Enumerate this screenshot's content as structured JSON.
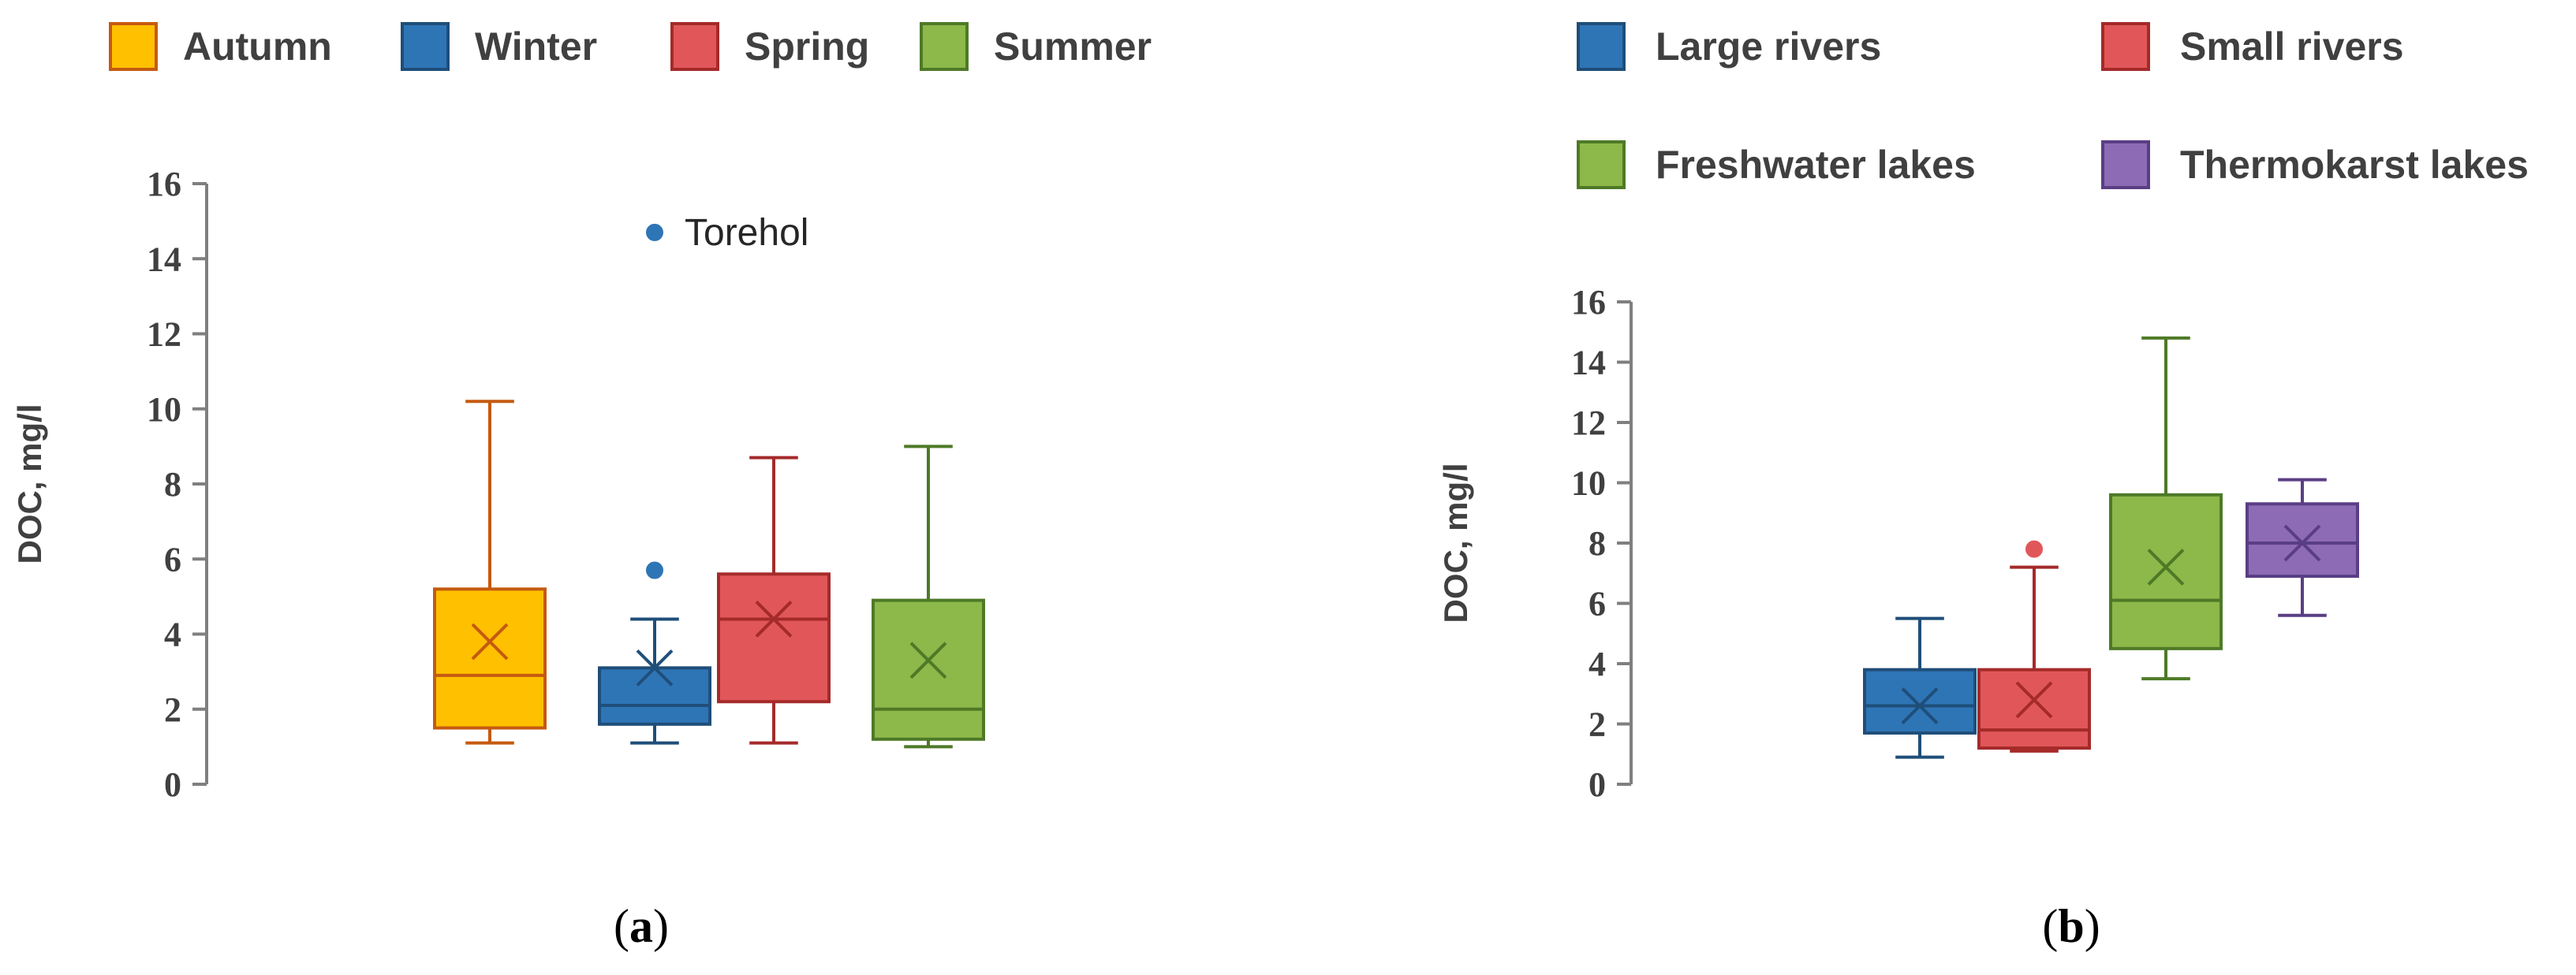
{
  "chart_data": [
    {
      "type": "box",
      "panel": "a",
      "panel_label_parts": [
        "(",
        "a",
        ")"
      ],
      "ylabel": "DOC, mg/l",
      "ylim": [
        0,
        16
      ],
      "yticks": [
        0,
        2,
        4,
        6,
        8,
        10,
        12,
        14,
        16
      ],
      "grid": false,
      "legend_position": "top",
      "series": [
        {
          "name": "Autumn",
          "color": "#FFC000",
          "stroke": "#C55A11",
          "min": 1.1,
          "q1": 1.5,
          "median": 2.9,
          "q3": 5.2,
          "max": 10.2,
          "mean": 3.8,
          "outliers": []
        },
        {
          "name": "Winter",
          "color": "#2E75B6",
          "stroke": "#1F4E79",
          "min": 1.1,
          "q1": 1.6,
          "median": 2.1,
          "q3": 3.1,
          "max": 4.4,
          "mean": 3.1,
          "outliers": [
            5.7,
            14.7
          ]
        },
        {
          "name": "Spring",
          "color": "#E15759",
          "stroke": "#A52A2A",
          "min": 1.1,
          "q1": 2.2,
          "median": 4.4,
          "q3": 5.6,
          "max": 8.7,
          "mean": 4.4,
          "outliers": []
        },
        {
          "name": "Summer",
          "color": "#8DB84A",
          "stroke": "#4E7A27",
          "min": 1.0,
          "q1": 1.2,
          "median": 2.0,
          "q3": 4.9,
          "max": 9.0,
          "mean": 3.3,
          "outliers": []
        }
      ],
      "annotations": [
        {
          "text": "Torehol",
          "series": "Winter",
          "y": 14.7
        }
      ]
    },
    {
      "type": "box",
      "panel": "b",
      "panel_label_parts": [
        "(",
        "b",
        ")"
      ],
      "ylabel": "DOC, mg/l",
      "ylim": [
        0,
        16
      ],
      "yticks": [
        0,
        2,
        4,
        6,
        8,
        10,
        12,
        14,
        16
      ],
      "grid": false,
      "legend_position": "top",
      "series": [
        {
          "name": "Large rivers",
          "color": "#2E75B6",
          "stroke": "#1F4E79",
          "min": 0.9,
          "q1": 1.7,
          "median": 2.6,
          "q3": 3.8,
          "max": 5.5,
          "mean": 2.6,
          "outliers": []
        },
        {
          "name": "Small rivers",
          "color": "#E15759",
          "stroke": "#A52A2A",
          "min": 1.1,
          "q1": 1.2,
          "median": 1.8,
          "q3": 3.8,
          "max": 7.2,
          "mean": 2.8,
          "outliers": [
            7.8
          ]
        },
        {
          "name": "Freshwater lakes",
          "color": "#8DB84A",
          "stroke": "#4E7A27",
          "min": 3.5,
          "q1": 4.5,
          "median": 6.1,
          "q3": 9.6,
          "max": 14.8,
          "mean": 7.2,
          "outliers": []
        },
        {
          "name": "Thermokarst lakes",
          "color": "#8E6BB5",
          "stroke": "#5A3E85",
          "min": 5.6,
          "q1": 6.9,
          "median": 8.0,
          "q3": 9.3,
          "max": 10.1,
          "mean": 8.0,
          "outliers": []
        }
      ],
      "annotations": []
    }
  ]
}
